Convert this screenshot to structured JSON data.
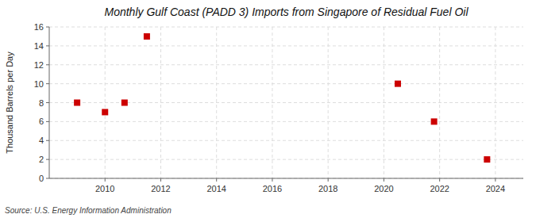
{
  "chart_data": {
    "type": "scatter",
    "title": "Monthly Gulf Coast (PADD 3) Imports from Singapore of Residual Fuel Oil",
    "ylabel": "Thousand Barrels per Day",
    "source": "Source: U.S. Energy Information Administration",
    "x": [
      2009.0,
      2010.0,
      2010.7,
      2011.5,
      2020.5,
      2021.8,
      2023.7
    ],
    "values": [
      8,
      7,
      8,
      15,
      10,
      6,
      2
    ],
    "color": "#cc0000",
    "marker": "square",
    "xlim": [
      2008.0,
      2025.0
    ],
    "ylim": [
      0,
      16
    ],
    "xticks": [
      2010,
      2012,
      2014,
      2016,
      2018,
      2020,
      2022,
      2024
    ],
    "yticks": [
      0,
      2,
      4,
      6,
      8,
      10,
      12,
      14,
      16
    ],
    "grid": true
  }
}
